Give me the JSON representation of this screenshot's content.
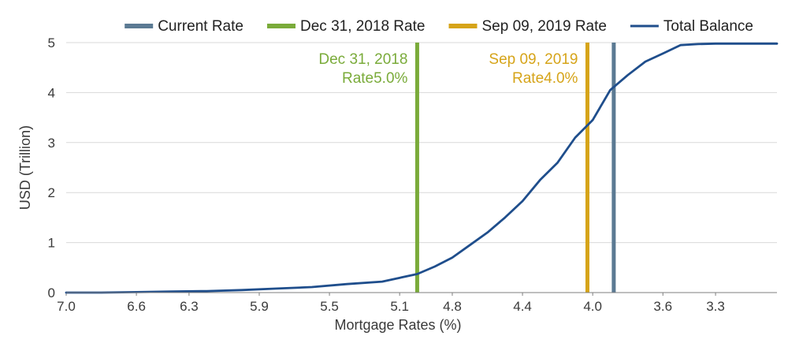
{
  "chart_data": {
    "type": "line",
    "title": "",
    "xlabel": "Mortgage Rates (%)",
    "ylabel": "USD (Trillion)",
    "xlim": [
      7.0,
      2.95
    ],
    "x_reversed": true,
    "ylim": [
      0,
      5
    ],
    "x_ticks": [
      7.0,
      6.6,
      6.3,
      5.9,
      5.5,
      5.1,
      4.8,
      4.4,
      4.0,
      3.6,
      3.3
    ],
    "x_tick_labels": [
      "7.0",
      "6.6",
      "6.3",
      "5.9",
      "5.5",
      "5.1",
      "4.8",
      "4.4",
      "4.0",
      "3.6",
      "3.3"
    ],
    "y_ticks": [
      0,
      1,
      2,
      3,
      4,
      5
    ],
    "y_tick_labels": [
      "0",
      "1",
      "2",
      "3",
      "4",
      "5"
    ],
    "grid": "horizontal",
    "legend_position": "top",
    "legend": [
      {
        "label": "Current Rate",
        "color": "#5b7a93",
        "kind": "bar"
      },
      {
        "label": "Dec 31, 2018 Rate",
        "color": "#7aab3a",
        "kind": "bar"
      },
      {
        "label": "Sep 09, 2019 Rate",
        "color": "#d6a419",
        "kind": "bar"
      },
      {
        "label": "Total Balance",
        "color": "#1f4e8c",
        "kind": "line"
      }
    ],
    "series": [
      {
        "name": "Total Balance",
        "color": "#1f4e8c",
        "x": [
          7.0,
          6.8,
          6.6,
          6.4,
          6.2,
          6.0,
          5.8,
          5.6,
          5.4,
          5.2,
          5.0,
          4.9,
          4.8,
          4.7,
          4.6,
          4.5,
          4.4,
          4.3,
          4.2,
          4.1,
          4.0,
          3.9,
          3.8,
          3.7,
          3.6,
          3.5,
          3.4,
          3.3,
          3.2,
          3.1,
          2.95
        ],
        "values": [
          0.0,
          0.0,
          0.01,
          0.02,
          0.03,
          0.05,
          0.08,
          0.11,
          0.17,
          0.22,
          0.37,
          0.52,
          0.7,
          0.95,
          1.2,
          1.5,
          1.83,
          2.25,
          2.6,
          3.1,
          3.45,
          4.05,
          4.35,
          4.62,
          4.78,
          4.95,
          4.97,
          4.98,
          4.98,
          4.98,
          4.98
        ]
      }
    ],
    "vertical_lines": [
      {
        "name": "Dec 31, 2018 Rate",
        "x": 5.0,
        "color": "#7aab3a",
        "label_lines": [
          "Dec 31, 2018",
          "Rate5.0%"
        ],
        "label_side": "left"
      },
      {
        "name": "Sep 09, 2019 Rate",
        "x": 4.03,
        "color": "#d6a419",
        "label_lines": [
          "Sep 09, 2019",
          "Rate4.0%"
        ],
        "label_side": "left"
      },
      {
        "name": "Current Rate",
        "x": 3.88,
        "color": "#5b7a93",
        "label_lines": [],
        "label_side": "none"
      }
    ]
  }
}
